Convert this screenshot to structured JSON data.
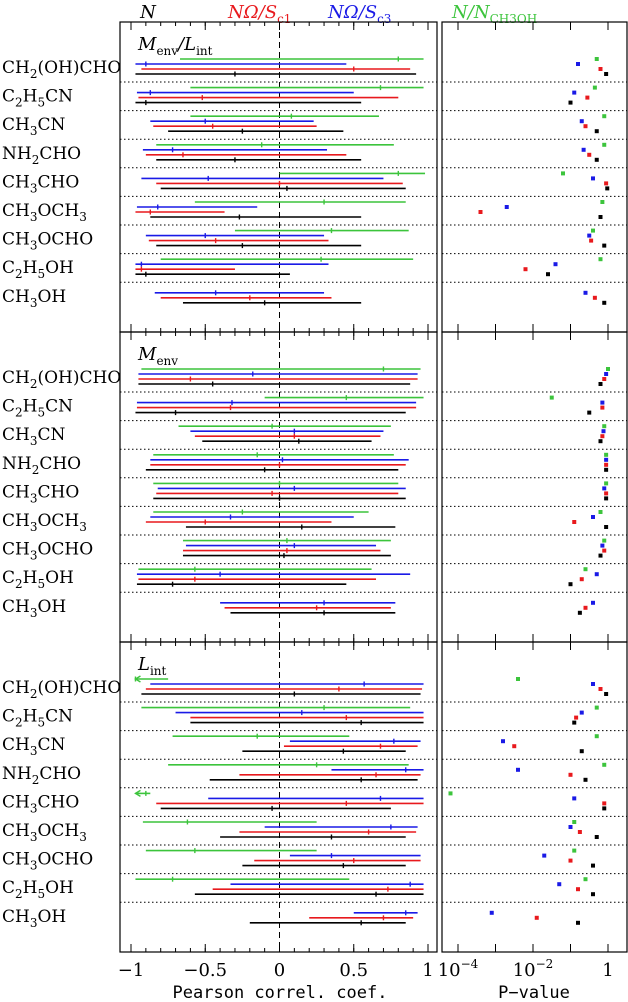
{
  "legend": [
    {
      "label": "N",
      "color": "#000000"
    },
    {
      "label": "NΩ/S",
      "sub": "c1",
      "color": "#e8191d"
    },
    {
      "label": "NΩ/S",
      "sub": "c3",
      "color": "#1a1ae6"
    },
    {
      "label": "N/N",
      "sub": "CH3OH",
      "color": "#3cc43c"
    }
  ],
  "colors": {
    "N": "#000000",
    "Sc1": "#e8191d",
    "Sc3": "#1a1ae6",
    "CH3OH": "#3cc43c"
  },
  "molecules": [
    {
      "base": "CH",
      "parts": [
        [
          "2",
          "sub"
        ],
        [
          "(OH)CHO",
          "n"
        ]
      ],
      "text": "CH2(OH)CHO"
    },
    {
      "base": "C",
      "parts": [
        [
          "2",
          "sub"
        ],
        [
          "H",
          "n"
        ],
        [
          "5",
          "sub"
        ],
        [
          "CN",
          "n"
        ]
      ],
      "text": "C2H5CN"
    },
    {
      "base": "CH",
      "parts": [
        [
          "3",
          "sub"
        ],
        [
          "CN",
          "n"
        ]
      ],
      "text": "CH3CN"
    },
    {
      "base": "NH",
      "parts": [
        [
          "2",
          "sub"
        ],
        [
          "CHO",
          "n"
        ]
      ],
      "text": "NH2CHO"
    },
    {
      "base": "CH",
      "parts": [
        [
          "3",
          "sub"
        ],
        [
          "CHO",
          "n"
        ]
      ],
      "text": "CH3CHO"
    },
    {
      "base": "CH",
      "parts": [
        [
          "3",
          "sub"
        ],
        [
          "OCH",
          "n"
        ],
        [
          "3",
          "sub"
        ]
      ],
      "text": "CH3OCH3"
    },
    {
      "base": "CH",
      "parts": [
        [
          "3",
          "sub"
        ],
        [
          "OCHO",
          "n"
        ]
      ],
      "text": "CH3OCHO"
    },
    {
      "base": "C",
      "parts": [
        [
          "2",
          "sub"
        ],
        [
          "H",
          "n"
        ],
        [
          "5",
          "sub"
        ],
        [
          "OH",
          "n"
        ]
      ],
      "text": "C2H5OH"
    },
    {
      "base": "CH",
      "parts": [
        [
          "3",
          "sub"
        ],
        [
          "OH",
          "n"
        ]
      ],
      "text": "CH3OH"
    }
  ],
  "axes": {
    "left_xlabel": "Pearson correl. coef.",
    "right_xlabel": "P−value",
    "left_ticks": [
      "−1",
      "−0.5",
      "0",
      "0.5",
      "1"
    ],
    "left_tick_values": [
      -1,
      -0.5,
      0,
      0.5,
      1
    ],
    "right_ticks": [
      "10",
      "10",
      "1"
    ],
    "right_tick_exps": [
      "−4",
      "−2",
      ""
    ],
    "right_tick_values": [
      -4,
      -2,
      0
    ]
  },
  "chart_data": [
    {
      "type": "errorbar",
      "title": "Menv/Lint",
      "title_main": "M",
      "title_sub": "env",
      "title_main2": "/L",
      "title_sub2": "int",
      "xlim": [
        -1,
        1
      ],
      "plim_log10": [
        -5,
        0
      ],
      "rows": [
        {
          "molecule": "CH2(OH)CHO",
          "green": {
            "r": 0.8,
            "lo": -0.67,
            "hi": 0.97,
            "logp": -0.3
          },
          "blue": {
            "r": -0.9,
            "lo": -0.97,
            "hi": 0.45,
            "logp": -0.8
          },
          "red": {
            "r": 0.5,
            "lo": -0.93,
            "hi": 0.88,
            "logp": -0.2
          },
          "black": {
            "r": -0.3,
            "lo": -0.97,
            "hi": 0.92,
            "logp": -0.05
          }
        },
        {
          "molecule": "C2H5CN",
          "green": {
            "r": 0.68,
            "lo": -0.6,
            "hi": 0.97,
            "logp": -0.35
          },
          "blue": {
            "r": -0.87,
            "lo": -0.96,
            "hi": 0.5,
            "logp": -0.9
          },
          "red": {
            "r": -0.52,
            "lo": -0.95,
            "hi": 0.8,
            "logp": -0.55
          },
          "black": {
            "r": -0.9,
            "lo": -0.97,
            "hi": 0.55,
            "logp": -1.0
          }
        },
        {
          "molecule": "CH3CN",
          "green": {
            "r": 0.08,
            "lo": -0.6,
            "hi": 0.67,
            "logp": -0.1
          },
          "blue": {
            "r": -0.5,
            "lo": -0.87,
            "hi": 0.23,
            "logp": -0.7
          },
          "red": {
            "r": -0.45,
            "lo": -0.85,
            "hi": 0.25,
            "logp": -0.6
          },
          "black": {
            "r": -0.25,
            "lo": -0.75,
            "hi": 0.43,
            "logp": -0.3
          }
        },
        {
          "molecule": "NH2CHO",
          "green": {
            "r": -0.12,
            "lo": -0.83,
            "hi": 0.77,
            "logp": -0.1
          },
          "blue": {
            "r": -0.72,
            "lo": -0.92,
            "hi": 0.32,
            "logp": -0.65
          },
          "red": {
            "r": -0.65,
            "lo": -0.9,
            "hi": 0.45,
            "logp": -0.5
          },
          "black": {
            "r": -0.3,
            "lo": -0.83,
            "hi": 0.55,
            "logp": -0.3
          }
        },
        {
          "molecule": "CH3CHO",
          "green": {
            "r": 0.8,
            "lo": 0.0,
            "hi": 0.98,
            "logp": -1.2
          },
          "blue": {
            "r": -0.48,
            "lo": -0.93,
            "hi": 0.7,
            "logp": -0.4
          },
          "red": {
            "r": 0.0,
            "lo": -0.83,
            "hi": 0.83,
            "logp": -0.05
          },
          "black": {
            "r": 0.05,
            "lo": -0.8,
            "hi": 0.85,
            "logp": -0.02
          }
        },
        {
          "molecule": "CH3OCH3",
          "green": {
            "r": 0.3,
            "lo": -0.57,
            "hi": 0.85,
            "logp": -0.15
          },
          "blue": {
            "r": -0.82,
            "lo": -0.96,
            "hi": -0.15,
            "logp": -2.7
          },
          "red": {
            "r": -0.87,
            "lo": -0.97,
            "hi": -0.37,
            "logp": -3.4
          },
          "black": {
            "r": -0.27,
            "lo": -0.87,
            "hi": 0.55,
            "logp": -0.2
          }
        },
        {
          "molecule": "CH3OCHO",
          "green": {
            "r": 0.35,
            "lo": -0.3,
            "hi": 0.87,
            "logp": -0.4
          },
          "blue": {
            "r": -0.5,
            "lo": -0.9,
            "hi": 0.3,
            "logp": -0.5
          },
          "red": {
            "r": -0.43,
            "lo": -0.88,
            "hi": 0.33,
            "logp": -0.45
          },
          "black": {
            "r": -0.25,
            "lo": -0.83,
            "hi": 0.55,
            "logp": -0.1
          }
        },
        {
          "molecule": "C2H5OH",
          "green": {
            "r": 0.28,
            "lo": -0.8,
            "hi": 0.9,
            "logp": -0.2
          },
          "blue": {
            "r": -0.93,
            "lo": -0.97,
            "hi": 0.33,
            "logp": -1.4
          },
          "red": {
            "r": -0.93,
            "lo": -0.97,
            "hi": -0.3,
            "logp": -2.2
          },
          "black": {
            "r": -0.9,
            "lo": -0.97,
            "hi": 0.07,
            "logp": -1.6
          }
        },
        {
          "molecule": "CH3OH",
          "green": null,
          "blue": {
            "r": -0.43,
            "lo": -0.84,
            "hi": 0.3,
            "logp": -0.6
          },
          "red": {
            "r": -0.2,
            "lo": -0.8,
            "hi": 0.35,
            "logp": -0.35
          },
          "black": {
            "r": -0.1,
            "lo": -0.65,
            "hi": 0.55,
            "logp": -0.1
          }
        }
      ]
    },
    {
      "type": "errorbar",
      "title": "Menv",
      "title_main": "M",
      "title_sub": "env",
      "title_main2": "",
      "title_sub2": "",
      "xlim": [
        -1,
        1
      ],
      "plim_log10": [
        -5,
        0
      ],
      "rows": [
        {
          "molecule": "CH2(OH)CHO",
          "green": {
            "r": 0.7,
            "lo": -0.93,
            "hi": 0.95,
            "logp": 0.0
          },
          "blue": {
            "r": -0.18,
            "lo": -0.95,
            "hi": 0.93,
            "logp": -0.05
          },
          "red": {
            "r": -0.6,
            "lo": -0.95,
            "hi": 0.93,
            "logp": -0.1
          },
          "black": {
            "r": -0.45,
            "lo": -0.95,
            "hi": 0.88,
            "logp": -0.2
          }
        },
        {
          "molecule": "C2H5CN",
          "green": {
            "r": 0.45,
            "lo": -0.1,
            "hi": 0.97,
            "logp": -1.5
          },
          "blue": {
            "r": -0.32,
            "lo": -0.96,
            "hi": 0.92,
            "logp": -0.15
          },
          "red": {
            "r": -0.33,
            "lo": -0.96,
            "hi": 0.92,
            "logp": -0.15
          },
          "black": {
            "r": -0.7,
            "lo": -0.97,
            "hi": 0.85,
            "logp": -0.5
          }
        },
        {
          "molecule": "CH3CN",
          "green": {
            "r": -0.05,
            "lo": -0.68,
            "hi": 0.75,
            "logp": -0.1
          },
          "blue": {
            "r": 0.1,
            "lo": -0.6,
            "hi": 0.7,
            "logp": -0.12
          },
          "red": {
            "r": 0.1,
            "lo": -0.57,
            "hi": 0.68,
            "logp": -0.15
          },
          "black": {
            "r": 0.13,
            "lo": -0.52,
            "hi": 0.62,
            "logp": -0.2
          }
        },
        {
          "molecule": "NH2CHO",
          "green": {
            "r": -0.15,
            "lo": -0.85,
            "hi": 0.77,
            "logp": -0.05
          },
          "blue": {
            "r": 0.02,
            "lo": -0.87,
            "hi": 0.87,
            "logp": -0.05
          },
          "red": {
            "r": 0.0,
            "lo": -0.87,
            "hi": 0.85,
            "logp": -0.05
          },
          "black": {
            "r": -0.1,
            "lo": -0.9,
            "hi": 0.8,
            "logp": -0.05
          }
        },
        {
          "molecule": "CH3CHO",
          "green": {
            "r": 0.0,
            "lo": -0.85,
            "hi": 0.8,
            "logp": -0.05
          },
          "blue": {
            "r": 0.1,
            "lo": -0.82,
            "hi": 0.85,
            "logp": -0.1
          },
          "red": {
            "r": -0.05,
            "lo": -0.83,
            "hi": 0.8,
            "logp": -0.05
          },
          "black": {
            "r": 0.0,
            "lo": -0.85,
            "hi": 0.85,
            "logp": -0.05
          }
        },
        {
          "molecule": "CH3OCH3",
          "green": {
            "r": -0.25,
            "lo": -0.85,
            "hi": 0.6,
            "logp": -0.2
          },
          "blue": {
            "r": -0.33,
            "lo": -0.87,
            "hi": 0.5,
            "logp": -0.4
          },
          "red": {
            "r": -0.5,
            "lo": -0.9,
            "hi": 0.35,
            "logp": -0.9
          },
          "black": {
            "r": 0.15,
            "lo": -0.63,
            "hi": 0.78,
            "logp": -0.05
          }
        },
        {
          "molecule": "CH3OCHO",
          "green": {
            "r": 0.05,
            "lo": -0.65,
            "hi": 0.75,
            "logp": -0.1
          },
          "blue": {
            "r": 0.1,
            "lo": -0.63,
            "hi": 0.65,
            "logp": -0.15
          },
          "red": {
            "r": 0.05,
            "lo": -0.65,
            "hi": 0.68,
            "logp": -0.1
          },
          "black": {
            "r": 0.03,
            "lo": -0.65,
            "hi": 0.75,
            "logp": -0.2
          }
        },
        {
          "molecule": "C2H5OH",
          "green": {
            "r": -0.57,
            "lo": -0.95,
            "hi": 0.62,
            "logp": -0.6
          },
          "blue": {
            "r": -0.4,
            "lo": -0.96,
            "hi": 0.88,
            "logp": -0.3
          },
          "red": {
            "r": -0.57,
            "lo": -0.95,
            "hi": 0.65,
            "logp": -0.7
          },
          "black": {
            "r": -0.72,
            "lo": -0.96,
            "hi": 0.45,
            "logp": -1.0
          }
        },
        {
          "molecule": "CH3OH",
          "green": null,
          "blue": {
            "r": 0.3,
            "lo": -0.4,
            "hi": 0.78,
            "logp": -0.4
          },
          "red": {
            "r": 0.25,
            "lo": -0.37,
            "hi": 0.75,
            "logp": -0.6
          },
          "black": {
            "r": 0.3,
            "lo": -0.33,
            "hi": 0.78,
            "logp": -0.75
          }
        }
      ]
    },
    {
      "type": "errorbar",
      "title": "Lint",
      "title_main": "L",
      "title_sub": "int",
      "title_main2": "",
      "title_sub2": "",
      "xlim": [
        -1,
        1
      ],
      "plim_log10": [
        -5,
        0
      ],
      "rows": [
        {
          "molecule": "CH2(OH)CHO",
          "green": {
            "r": -0.97,
            "lo": -0.97,
            "hi": -0.75,
            "logp": -2.4,
            "arrow_left": true
          },
          "blue": {
            "r": 0.57,
            "lo": -0.87,
            "hi": 0.97,
            "logp": -0.4
          },
          "red": {
            "r": 0.4,
            "lo": -0.9,
            "hi": 0.96,
            "logp": -0.2
          },
          "black": {
            "r": 0.1,
            "lo": -0.93,
            "hi": 0.95,
            "logp": -0.05
          }
        },
        {
          "molecule": "C2H5CN",
          "green": {
            "r": 0.3,
            "lo": -0.93,
            "hi": 0.88,
            "logp": -0.3
          },
          "blue": {
            "r": 0.15,
            "lo": -0.7,
            "hi": 0.97,
            "logp": -0.7
          },
          "red": {
            "r": 0.45,
            "lo": -0.6,
            "hi": 0.97,
            "logp": -0.85
          },
          "black": {
            "r": 0.55,
            "lo": -0.6,
            "hi": 0.97,
            "logp": -0.9
          }
        },
        {
          "molecule": "CH3CN",
          "green": {
            "r": -0.15,
            "lo": -0.72,
            "hi": 0.47,
            "logp": -0.3
          },
          "blue": {
            "r": 0.77,
            "lo": 0.07,
            "hi": 0.95,
            "logp": -2.8
          },
          "red": {
            "r": 0.68,
            "lo": 0.03,
            "hi": 0.93,
            "logp": -2.5
          },
          "black": {
            "r": 0.43,
            "lo": -0.25,
            "hi": 0.85,
            "logp": -0.7
          }
        },
        {
          "molecule": "NH2CHO",
          "green": {
            "r": 0.25,
            "lo": -0.75,
            "hi": 0.87,
            "logp": -0.1
          },
          "blue": {
            "r": 0.85,
            "lo": 0.35,
            "hi": 0.97,
            "logp": -2.4
          },
          "red": {
            "r": 0.65,
            "lo": -0.27,
            "hi": 0.95,
            "logp": -1.0
          },
          "black": {
            "r": 0.55,
            "lo": -0.47,
            "hi": 0.93,
            "logp": -0.6
          }
        },
        {
          "molecule": "CH3CHO",
          "green": {
            "r": -0.9,
            "lo": -0.97,
            "hi": -0.87,
            "logp": -4.2,
            "arrow_left": true
          },
          "blue": {
            "r": 0.68,
            "lo": -0.48,
            "hi": 0.97,
            "logp": -0.9
          },
          "red": {
            "r": 0.45,
            "lo": -0.83,
            "hi": 0.97,
            "logp": -0.1
          },
          "black": {
            "r": -0.05,
            "lo": -0.8,
            "hi": 0.75,
            "logp": -0.1
          }
        },
        {
          "molecule": "CH3OCH3",
          "green": {
            "r": -0.62,
            "lo": -0.92,
            "hi": 0.25,
            "logp": -0.9
          },
          "blue": {
            "r": 0.75,
            "lo": -0.1,
            "hi": 0.93,
            "logp": -1.0
          },
          "red": {
            "r": 0.6,
            "lo": -0.27,
            "hi": 0.92,
            "logp": -0.75
          },
          "black": {
            "r": 0.35,
            "lo": -0.4,
            "hi": 0.85,
            "logp": -0.3
          }
        },
        {
          "molecule": "CH3OCHO",
          "green": {
            "r": -0.57,
            "lo": -0.9,
            "hi": 0.25,
            "logp": -0.9
          },
          "blue": {
            "r": 0.35,
            "lo": 0.07,
            "hi": 0.95,
            "logp": -1.7
          },
          "red": {
            "r": 0.5,
            "lo": -0.17,
            "hi": 0.95,
            "logp": -1.0
          },
          "black": {
            "r": 0.43,
            "lo": -0.25,
            "hi": 0.85,
            "logp": -0.4
          }
        },
        {
          "molecule": "C2H5OH",
          "green": {
            "r": -0.72,
            "lo": -0.97,
            "hi": 0.47,
            "logp": -0.6
          },
          "blue": {
            "r": 0.88,
            "lo": -0.33,
            "hi": 0.97,
            "logp": -1.3
          },
          "red": {
            "r": 0.73,
            "lo": -0.45,
            "hi": 0.97,
            "logp": -0.8
          },
          "black": {
            "r": 0.65,
            "lo": -0.57,
            "hi": 0.97,
            "logp": -0.4
          }
        },
        {
          "molecule": "CH3OH",
          "green": null,
          "blue": {
            "r": 0.85,
            "lo": 0.5,
            "hi": 0.93,
            "logp": -3.1
          },
          "red": {
            "r": 0.7,
            "lo": 0.2,
            "hi": 0.9,
            "logp": -1.9
          },
          "black": {
            "r": 0.55,
            "lo": -0.2,
            "hi": 0.85,
            "logp": -0.8
          }
        }
      ]
    }
  ]
}
